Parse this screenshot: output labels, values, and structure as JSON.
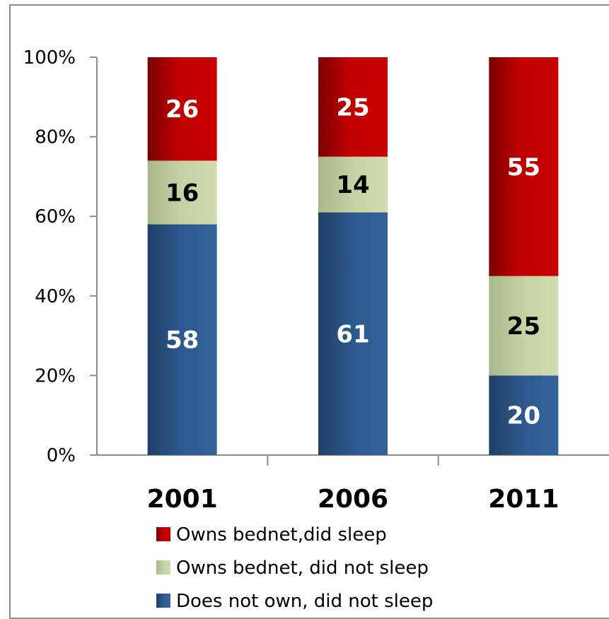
{
  "chart_data": {
    "type": "bar",
    "stacked": true,
    "categories": [
      "2001",
      "2006",
      "2011"
    ],
    "series": [
      {
        "name": "Does not own, did not sleep",
        "values": [
          58,
          61,
          20
        ],
        "color": "#2d5a8e",
        "label_color": "#ffffff"
      },
      {
        "name": "Owns bednet, did not sleep",
        "values": [
          16,
          14,
          25
        ],
        "color": "#c4d3a3",
        "label_color": "#000000"
      },
      {
        "name": "Owns bednet,did sleep",
        "values": [
          26,
          25,
          55
        ],
        "color": "#c00000",
        "label_color": "#ffffff"
      }
    ],
    "ylim": [
      0,
      100
    ],
    "yticks": [
      "0%",
      "20%",
      "40%",
      "60%",
      "80%",
      "100%"
    ],
    "legend_order": [
      "Owns bednet,did sleep",
      "Owns bednet, did not sleep",
      "Does not own, did not sleep"
    ],
    "legend_position": "bottom",
    "grid": false
  }
}
